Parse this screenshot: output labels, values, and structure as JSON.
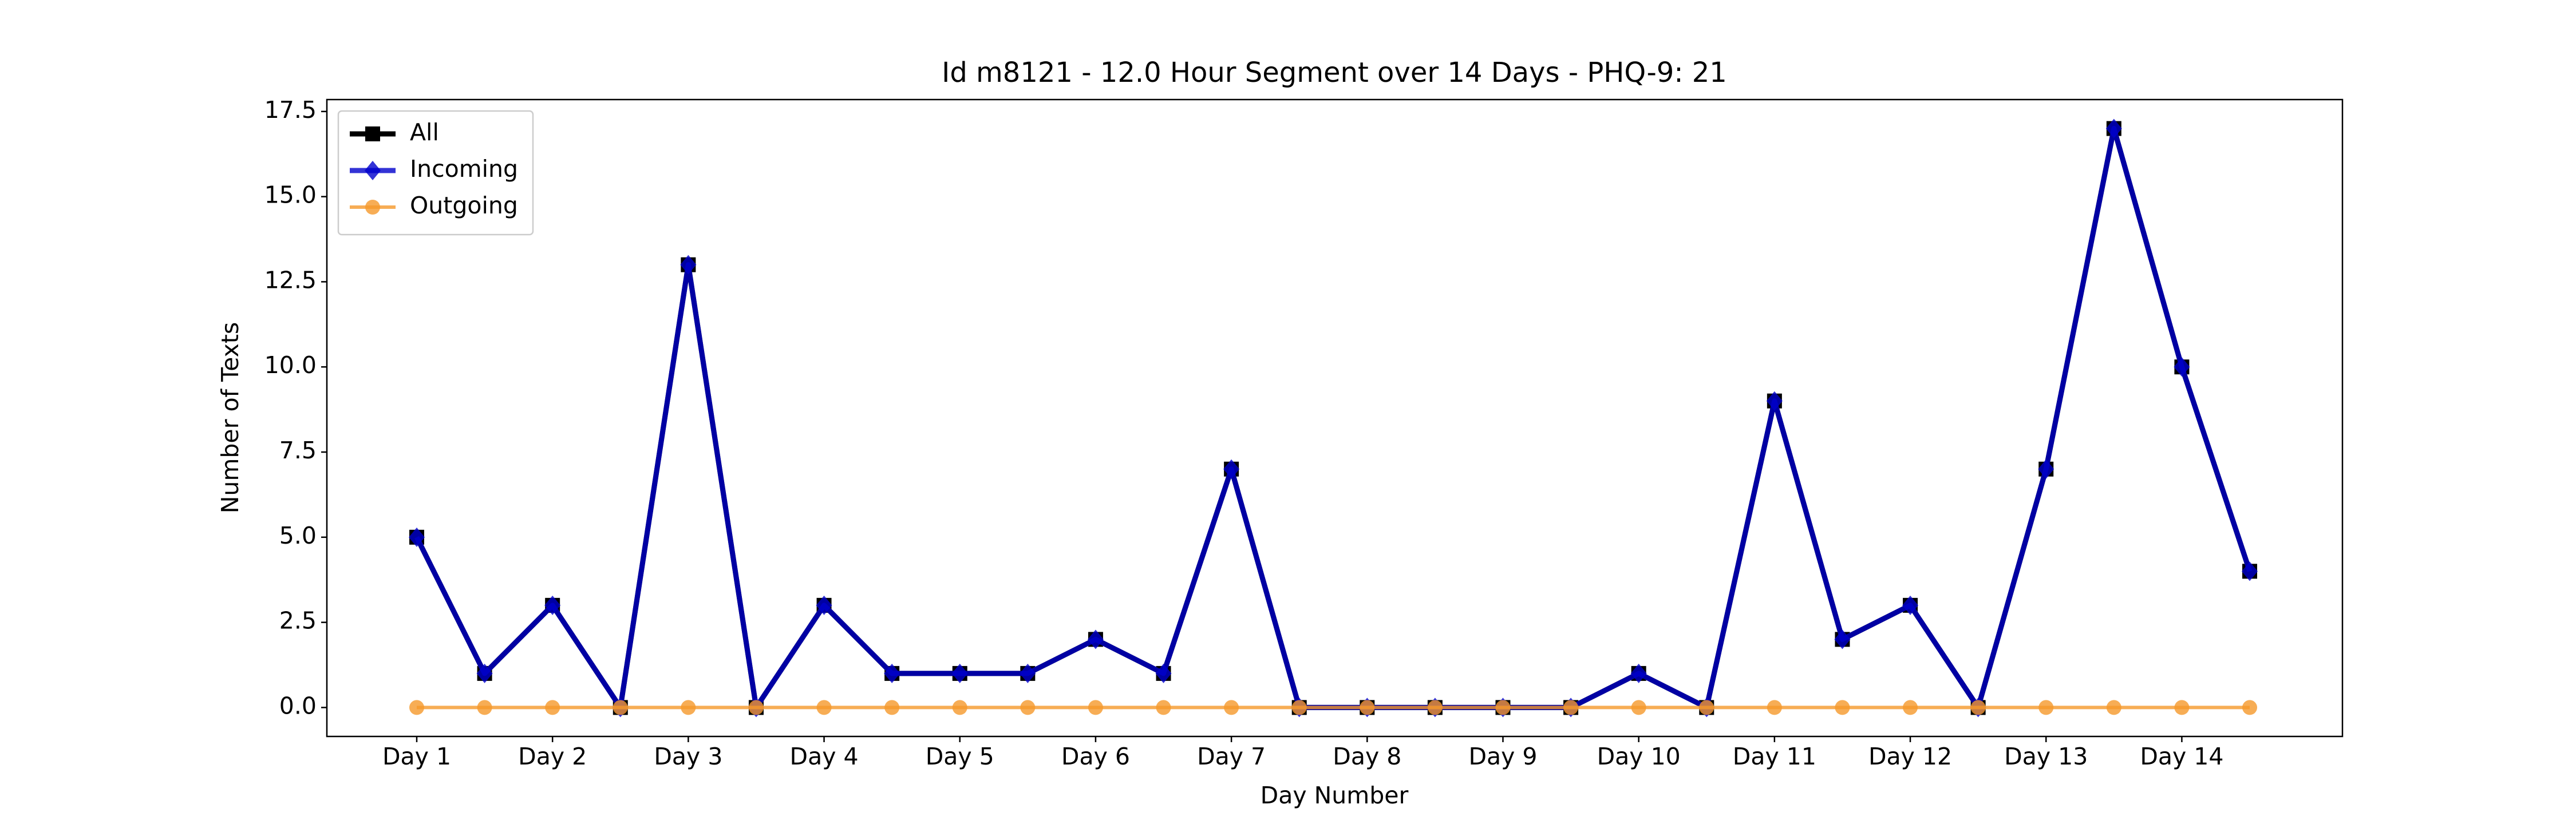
{
  "chart_data": {
    "type": "line",
    "title": "Id m8121 - 12.0 Hour Segment over 14 Days - PHQ-9: 21",
    "xlabel": "Day Number",
    "ylabel": "Number of Texts",
    "categories": [
      "Day 1",
      null,
      "Day 2",
      null,
      "Day 3",
      null,
      "Day 4",
      null,
      "Day 5",
      null,
      "Day 6",
      null,
      "Day 7",
      null,
      "Day 8",
      null,
      "Day 9",
      null,
      "Day 10",
      null,
      "Day 11",
      null,
      "Day 12",
      null,
      "Day 13",
      null,
      "Day 14",
      null
    ],
    "series": [
      {
        "name": "All",
        "color": "#000000",
        "marker": "square",
        "values": [
          5,
          1,
          3,
          0,
          13,
          0,
          3,
          1,
          1,
          1,
          2,
          1,
          7,
          0,
          0,
          0,
          0,
          0,
          1,
          0,
          9,
          2,
          3,
          0,
          7,
          17,
          10,
          4
        ]
      },
      {
        "name": "Incoming",
        "color": "#0000cc",
        "marker": "diamond",
        "values": [
          5,
          1,
          3,
          0,
          13,
          0,
          3,
          1,
          1,
          1,
          2,
          1,
          7,
          0,
          0,
          0,
          0,
          0,
          1,
          0,
          9,
          2,
          3,
          0,
          7,
          17,
          10,
          4
        ]
      },
      {
        "name": "Outgoing",
        "color": "#f5992a",
        "marker": "circle",
        "values": [
          0,
          0,
          0,
          0,
          0,
          0,
          0,
          0,
          0,
          0,
          0,
          0,
          0,
          0,
          0,
          0,
          0,
          0,
          0,
          0,
          0,
          0,
          0,
          0,
          0,
          0,
          0,
          0
        ]
      }
    ],
    "ylim": [
      -0.85,
      17.85
    ],
    "yticks": [
      {
        "value": 0,
        "label": "0.0"
      },
      {
        "value": 2.5,
        "label": "2.5"
      },
      {
        "value": 5,
        "label": "5.0"
      },
      {
        "value": 7.5,
        "label": "7.5"
      },
      {
        "value": 10,
        "label": "10.0"
      },
      {
        "value": 12.5,
        "label": "12.5"
      },
      {
        "value": 15,
        "label": "15.0"
      },
      {
        "value": 17.5,
        "label": "17.5"
      }
    ],
    "legend": "upper left",
    "grid": false
  }
}
